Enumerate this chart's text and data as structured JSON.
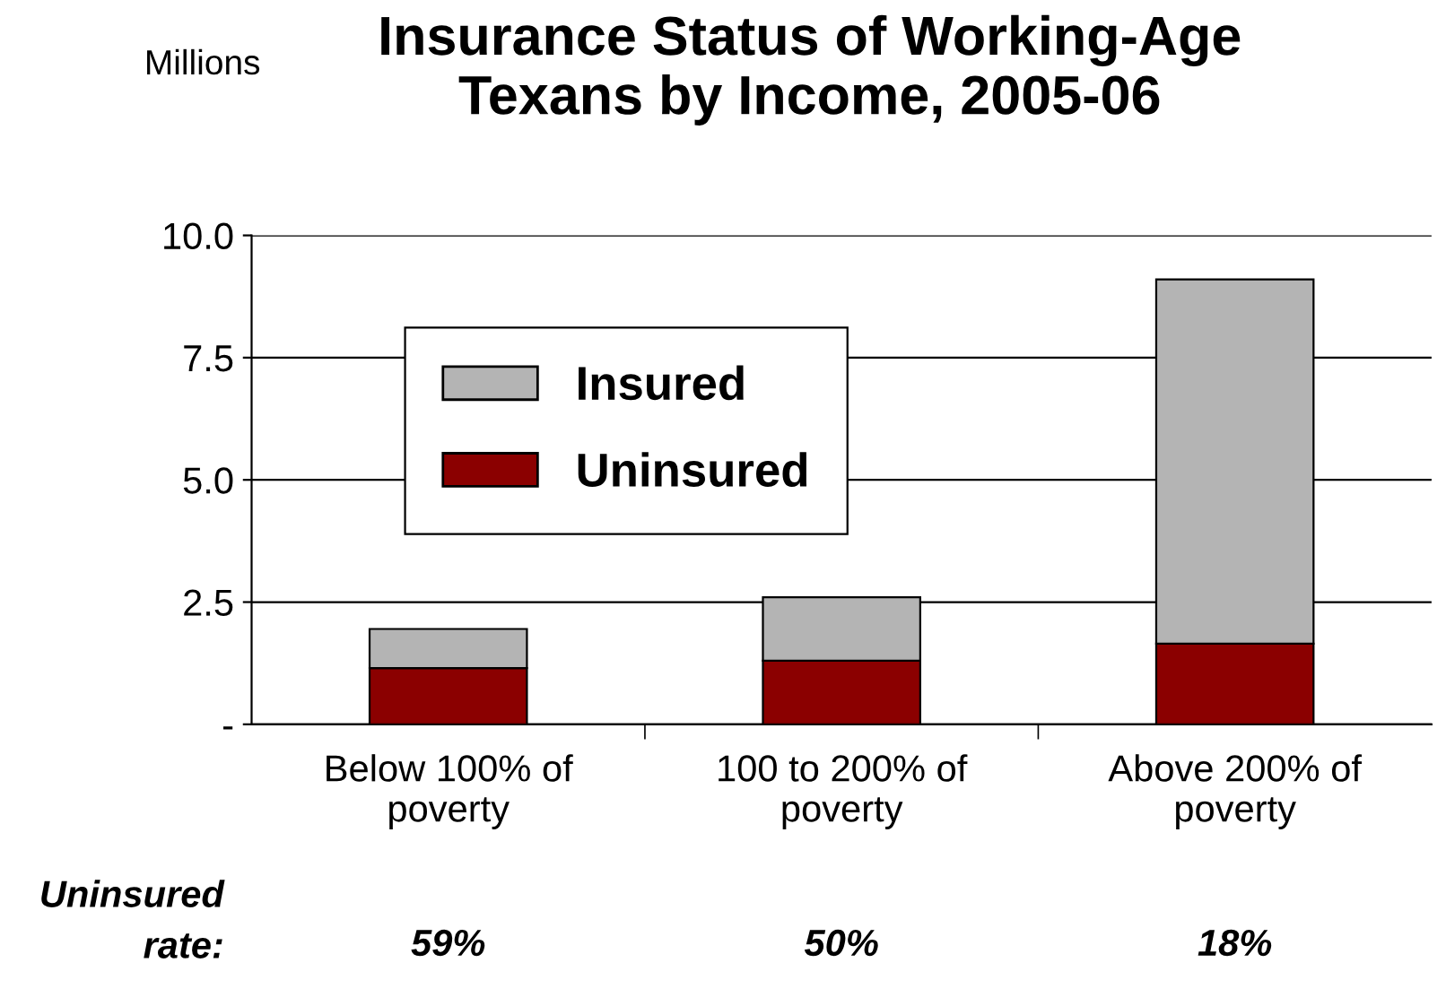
{
  "chart_data": {
    "type": "bar",
    "stacked": true,
    "title": "Insurance Status of Working-Age\nTexans by Income, 2005-06",
    "ylabel": "Millions",
    "categories": [
      "Below 100% of\npoverty",
      "100 to 200% of\npoverty",
      "Above 200% of\npoverty"
    ],
    "series": [
      {
        "name": "Uninsured",
        "color": "#8b0000",
        "values": [
          1.15,
          1.3,
          1.65
        ]
      },
      {
        "name": "Insured",
        "color": "#b4b4b4",
        "values": [
          0.8,
          1.3,
          7.45
        ]
      }
    ],
    "ylim": [
      0,
      10
    ],
    "yticks": [
      {
        "value": 0,
        "label": "-"
      },
      {
        "value": 2.5,
        "label": "2.5"
      },
      {
        "value": 5,
        "label": "5.0"
      },
      {
        "value": 7.5,
        "label": "7.5"
      },
      {
        "value": 10,
        "label": "10.0"
      }
    ],
    "grid": "y",
    "legend": "top left",
    "annotations": [
      "Uninsured\nrate:",
      "59%",
      "50%",
      "18%"
    ]
  }
}
